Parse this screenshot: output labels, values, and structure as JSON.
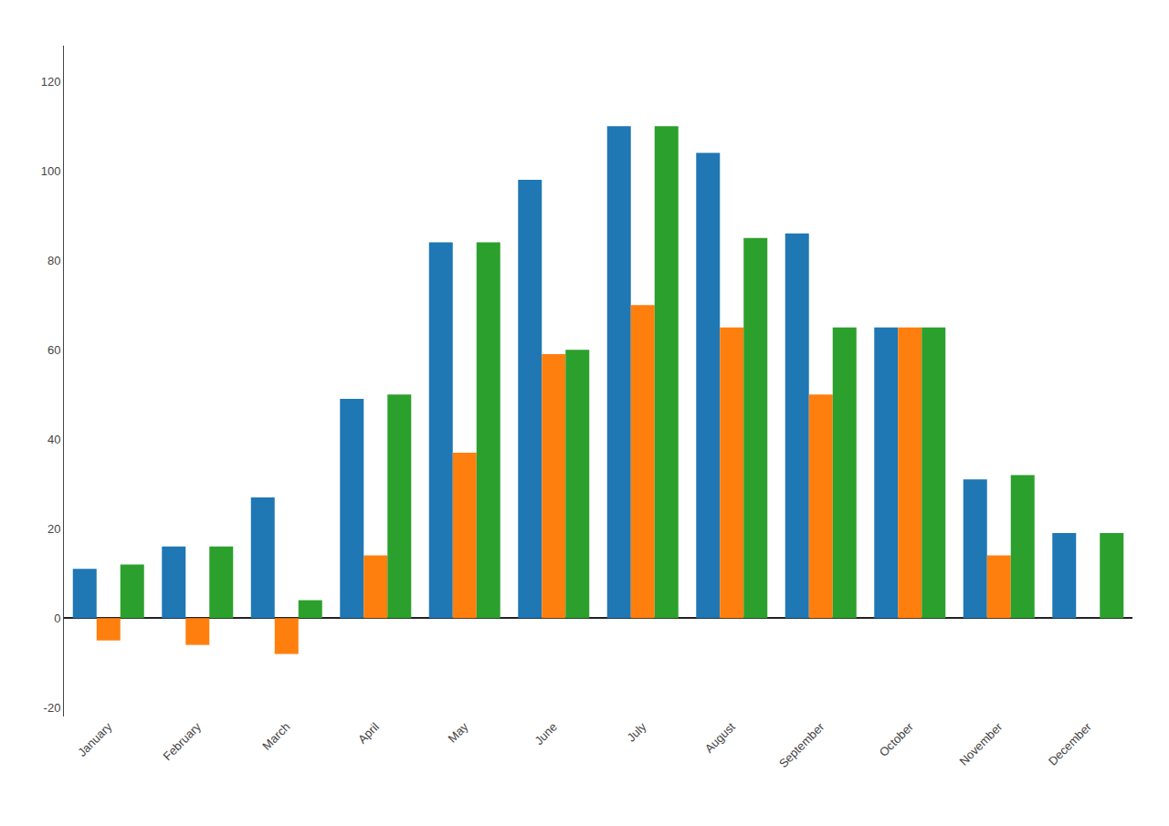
{
  "chart_data": {
    "type": "bar",
    "categories": [
      "January",
      "February",
      "March",
      "April",
      "May",
      "June",
      "July",
      "August",
      "September",
      "October",
      "November",
      "December"
    ],
    "series": [
      {
        "values": [
          11,
          16,
          27,
          49,
          84,
          98,
          110,
          104,
          86,
          65,
          31,
          19
        ]
      },
      {
        "values": [
          -5,
          -6,
          -8,
          14,
          37,
          59,
          70,
          65,
          50,
          65,
          14,
          0
        ]
      },
      {
        "values": [
          12,
          16,
          4,
          50,
          84,
          60,
          110,
          85,
          65,
          65,
          32,
          19
        ]
      }
    ],
    "ylim": [
      -22,
      128
    ],
    "yticks": [
      -20,
      0,
      20,
      40,
      60,
      80,
      100,
      120
    ],
    "grid": false
  }
}
